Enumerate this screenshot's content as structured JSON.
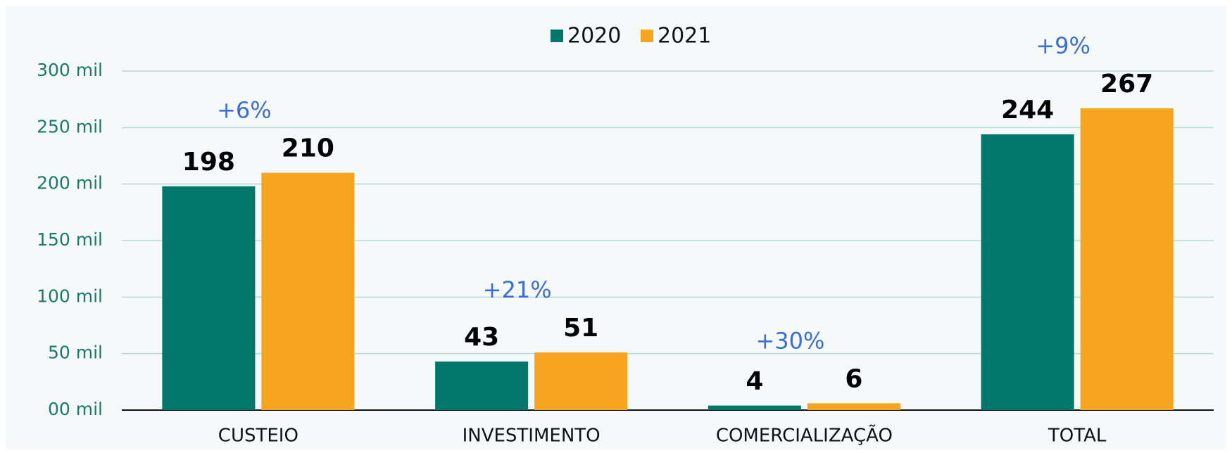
{
  "chart_data": {
    "type": "bar",
    "categories": [
      "CUSTEIO",
      "INVESTIMENTO",
      "COMERCIALIZAÇÃO",
      "TOTAL"
    ],
    "series": [
      {
        "name": "2020",
        "color": "#00776a",
        "values": [
          198,
          43,
          4,
          244
        ]
      },
      {
        "name": "2021",
        "color": "#f7a51f",
        "values": [
          210,
          51,
          6,
          267
        ]
      }
    ],
    "annotations": [
      "+6%",
      "+21%",
      "+30%",
      "+9%"
    ],
    "ylim": [
      0,
      300
    ],
    "yticks": [
      {
        "value": 0,
        "label": "00 mil"
      },
      {
        "value": 50,
        "label": "50 mil"
      },
      {
        "value": 100,
        "label": "100 mil"
      },
      {
        "value": 150,
        "label": "150 mil"
      },
      {
        "value": 200,
        "label": "200 mil"
      },
      {
        "value": 250,
        "label": "250 mil"
      },
      {
        "value": 300,
        "label": "300 mil"
      }
    ],
    "grid": true,
    "legend": "top"
  }
}
